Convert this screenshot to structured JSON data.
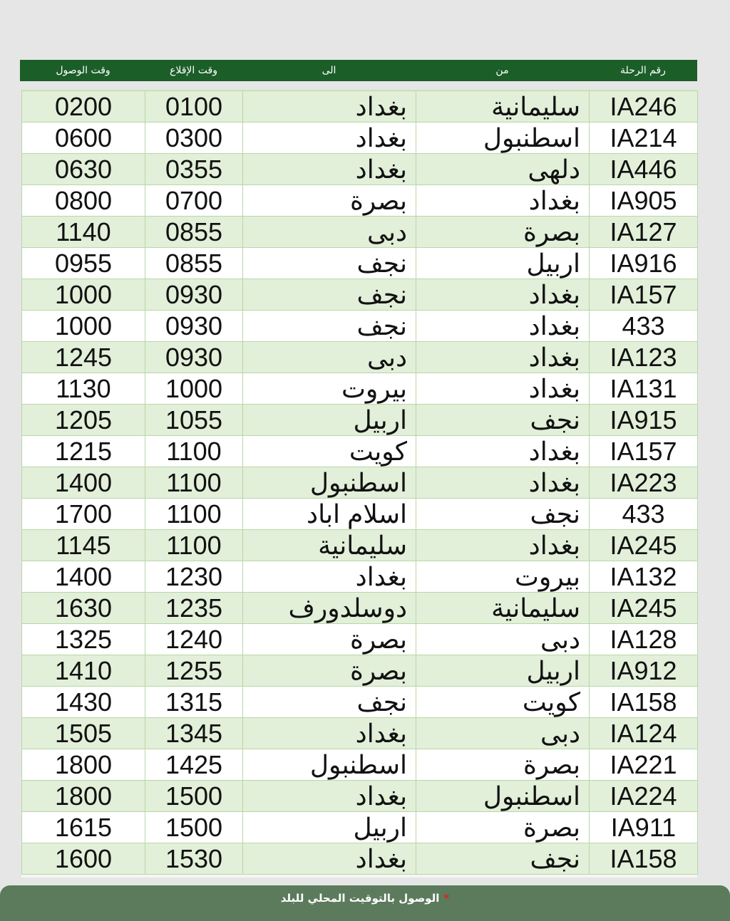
{
  "header": {
    "flight": "رقم الرحلة",
    "from": "من",
    "to": "الى",
    "departure": "وقت الإقلاع",
    "arrival": "وقت الوصول"
  },
  "rows": [
    [
      "IA246",
      "سليمانية",
      "بغداد",
      "0100",
      "0200"
    ],
    [
      "IA214",
      "اسطنبول",
      "بغداد",
      "0300",
      "0600"
    ],
    [
      "IA446",
      "دلهى",
      "بغداد",
      "0355",
      "0630"
    ],
    [
      "IA905",
      "بغداد",
      "بصرة",
      "0700",
      "0800"
    ],
    [
      "IA127",
      "بصرة",
      "دبى",
      "0855",
      "1140"
    ],
    [
      "IA916",
      "اربيل",
      "نجف",
      "0855",
      "0955"
    ],
    [
      "IA157",
      "بغداد",
      "نجف",
      "0930",
      "1000"
    ],
    [
      "433",
      "بغداد",
      "نجف",
      "0930",
      "1000"
    ],
    [
      "IA123",
      "بغداد",
      "دبى",
      "0930",
      "1245"
    ],
    [
      "IA131",
      "بغداد",
      "بيروت",
      "1000",
      "1130"
    ],
    [
      "IA915",
      "نجف",
      "اربيل",
      "1055",
      "1205"
    ],
    [
      "IA157",
      "بغداد",
      "كويت",
      "1100",
      "1215"
    ],
    [
      "IA223",
      "بغداد",
      "اسطنبول",
      "1100",
      "1400"
    ],
    [
      "433",
      "نجف",
      "اسلام اباد",
      "1100",
      "1700"
    ],
    [
      "IA245",
      "بغداد",
      "سليمانية",
      "1100",
      "1145"
    ],
    [
      "IA132",
      "بيروت",
      "بغداد",
      "1230",
      "1400"
    ],
    [
      "IA245",
      "سليمانية",
      "دوسلدورف",
      "1235",
      "1630"
    ],
    [
      "IA128",
      "دبى",
      "بصرة",
      "1240",
      "1325"
    ],
    [
      "IA912",
      "اربيل",
      "بصرة",
      "1255",
      "1410"
    ],
    [
      "IA158",
      "كويت",
      "نجف",
      "1315",
      "1430"
    ],
    [
      "IA124",
      "دبى",
      "بغداد",
      "1345",
      "1505"
    ],
    [
      "IA221",
      "بصرة",
      "اسطنبول",
      "1425",
      "1800"
    ],
    [
      "IA224",
      "اسطنبول",
      "بغداد",
      "1500",
      "1800"
    ],
    [
      "IA911",
      "بصرة",
      "اربيل",
      "1500",
      "1615"
    ],
    [
      "IA158",
      "نجف",
      "بغداد",
      "1530",
      "1600"
    ]
  ],
  "footer": {
    "star": "*",
    "note": "الوصول بالتوقيت المحلي للبلد"
  },
  "colors": {
    "header": "#1b5e28",
    "row_alt": "#e2efd9",
    "footer": "#5b7b5c",
    "star": "#dd2222"
  }
}
